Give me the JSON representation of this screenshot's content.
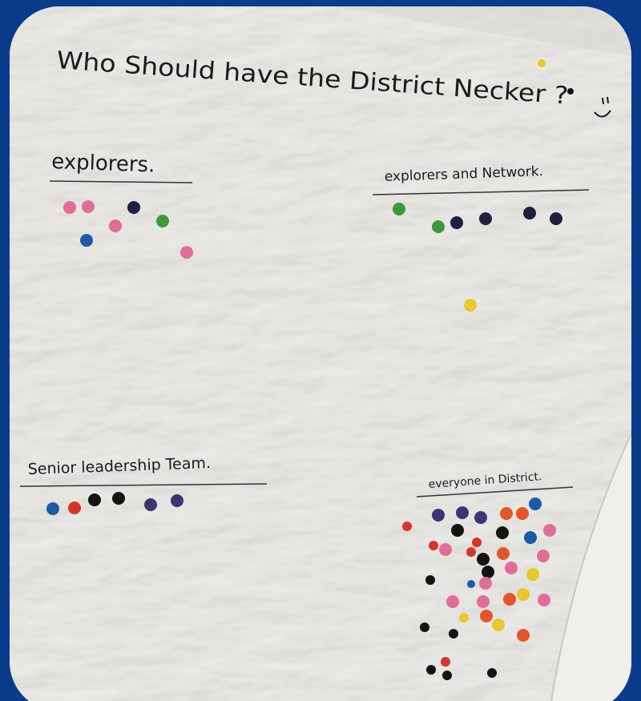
{
  "title": "Who Should have the District Necker ?",
  "sections": [
    {
      "heading": "explorers."
    },
    {
      "heading": "explorers and Network."
    },
    {
      "heading": "Senior leadership Team."
    },
    {
      "heading": "everyone in District."
    }
  ]
}
